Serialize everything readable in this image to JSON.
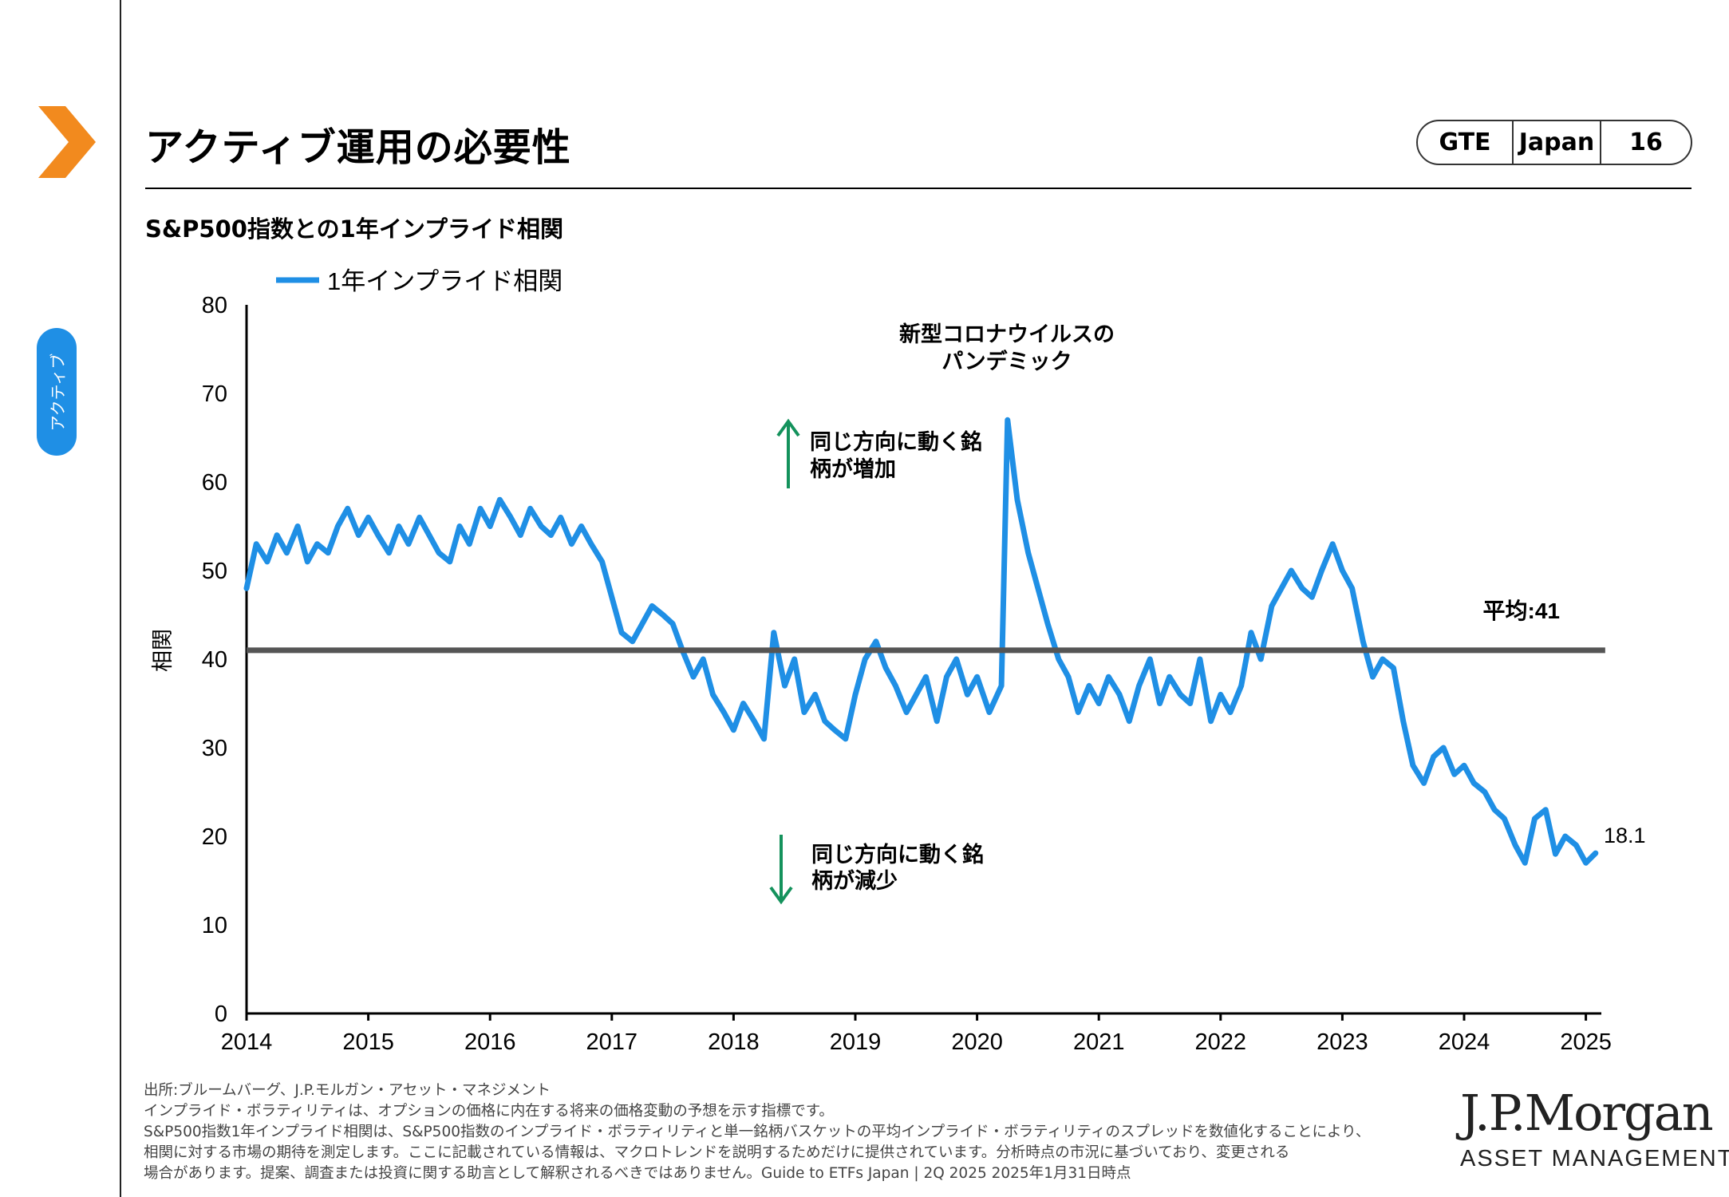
{
  "page": {
    "title": "アクティブ運用の必要性",
    "side_tab": "アクティブ",
    "badge": {
      "left": "GTE",
      "middle": "Japan",
      "right": "16"
    },
    "chart_subtitle": "S&P500指数との1年インプライド相関",
    "colors": {
      "accent_orange": "#f28a1e",
      "series_blue": "#1f8fe5",
      "average_line": "#555555",
      "arrow_green": "#14925c"
    },
    "icons": {
      "brand_mark": "chevron-right-icon"
    }
  },
  "chart_data": {
    "type": "line",
    "title": "",
    "xlabel": "",
    "ylabel": "相関",
    "ylim": [
      0,
      80
    ],
    "yticks": [
      "0",
      "10",
      "20",
      "30",
      "40",
      "50",
      "60",
      "70",
      "80"
    ],
    "xticks": [
      "2014",
      "2015",
      "2016",
      "2017",
      "2018",
      "2019",
      "2020",
      "2021",
      "2022",
      "2023",
      "2024",
      "2025"
    ],
    "xlim": [
      2014.0,
      2025.1
    ],
    "grid": false,
    "legend": {
      "position": "top-left",
      "label": "1年インプライド相関"
    },
    "series": [
      {
        "name": "1年インプライド相関",
        "x": [
          2014.0,
          2014.08,
          2014.17,
          2014.25,
          2014.33,
          2014.42,
          2014.5,
          2014.58,
          2014.67,
          2014.75,
          2014.83,
          2014.92,
          2015.0,
          2015.08,
          2015.17,
          2015.25,
          2015.33,
          2015.42,
          2015.5,
          2015.58,
          2015.67,
          2015.75,
          2015.83,
          2015.92,
          2016.0,
          2016.08,
          2016.17,
          2016.25,
          2016.33,
          2016.42,
          2016.5,
          2016.58,
          2016.67,
          2016.75,
          2016.83,
          2016.92,
          2017.0,
          2017.08,
          2017.17,
          2017.25,
          2017.33,
          2017.42,
          2017.5,
          2017.58,
          2017.67,
          2017.75,
          2017.83,
          2017.92,
          2018.0,
          2018.08,
          2018.17,
          2018.25,
          2018.33,
          2018.42,
          2018.5,
          2018.58,
          2018.67,
          2018.75,
          2018.83,
          2018.92,
          2019.0,
          2019.08,
          2019.17,
          2019.25,
          2019.33,
          2019.42,
          2019.5,
          2019.58,
          2019.67,
          2019.75,
          2019.83,
          2019.92,
          2020.0,
          2020.1,
          2020.2,
          2020.25,
          2020.33,
          2020.42,
          2020.5,
          2020.58,
          2020.67,
          2020.75,
          2020.83,
          2020.92,
          2021.0,
          2021.08,
          2021.17,
          2021.25,
          2021.33,
          2021.42,
          2021.5,
          2021.58,
          2021.67,
          2021.75,
          2021.83,
          2021.92,
          2022.0,
          2022.08,
          2022.17,
          2022.25,
          2022.33,
          2022.42,
          2022.5,
          2022.58,
          2022.67,
          2022.75,
          2022.83,
          2022.92,
          2023.0,
          2023.08,
          2023.17,
          2023.25,
          2023.33,
          2023.42,
          2023.5,
          2023.58,
          2023.67,
          2023.75,
          2023.83,
          2023.92,
          2024.0,
          2024.08,
          2024.17,
          2024.25,
          2024.33,
          2024.42,
          2024.5,
          2024.58,
          2024.67,
          2024.75,
          2024.83,
          2024.92,
          2025.0,
          2025.08
        ],
        "y": [
          48,
          53,
          51,
          54,
          52,
          55,
          51,
          53,
          52,
          55,
          57,
          54,
          56,
          54,
          52,
          55,
          53,
          56,
          54,
          52,
          51,
          55,
          53,
          57,
          55,
          58,
          56,
          54,
          57,
          55,
          54,
          56,
          53,
          55,
          53,
          51,
          47,
          43,
          42,
          44,
          46,
          45,
          44,
          41,
          38,
          40,
          36,
          34,
          32,
          35,
          33,
          31,
          43,
          37,
          40,
          34,
          36,
          33,
          32,
          31,
          36,
          40,
          42,
          39,
          37,
          34,
          36,
          38,
          33,
          38,
          40,
          36,
          38,
          34,
          37,
          67,
          58,
          52,
          48,
          44,
          40,
          38,
          34,
          37,
          35,
          38,
          36,
          33,
          37,
          40,
          35,
          38,
          36,
          35,
          40,
          33,
          36,
          34,
          37,
          43,
          40,
          46,
          48,
          50,
          48,
          47,
          50,
          53,
          50,
          48,
          42,
          38,
          40,
          39,
          33,
          28,
          26,
          29,
          30,
          27,
          28,
          26,
          25,
          23,
          22,
          19,
          17,
          22,
          23,
          18,
          20,
          19,
          17,
          18.1
        ]
      }
    ],
    "average": {
      "value": 41,
      "label": "平均:41"
    },
    "end_label": "18.1",
    "annotations": {
      "pandemic": [
        "新型コロナウイルスの",
        "パンデミック"
      ],
      "up": [
        "同じ方向に動く銘",
        "柄が増加"
      ],
      "down": [
        "同じ方向に動く銘",
        "柄が減少"
      ]
    }
  },
  "footer": {
    "lines": [
      "出所:ブルームバーグ、J.P.モルガン・アセット・マネジメント",
      "インプライド・ボラティリティは、オプションの価格に内在する将来の価格変動の予想を示す指標です。",
      "S&P500指数1年インプライド相関は、S&P500指数のインプライド・ボラティリティと単一銘柄バスケットの平均インプライド・ボラティリティのスプレッドを数値化することにより、",
      "相関に対する市場の期待を測定します。ここに記載されている情報は、マクロトレンドを説明するためだけに提供されています。分析時点の市況に基づいており、変更される",
      "場合があります。提案、調査または投資に関する助言として解釈されるべきではありません。Guide  to ETFs Japan | 2Q 2025 2025年1月31日時点"
    ],
    "logo_main": "J.P.Morgan",
    "logo_sub": "ASSET MANAGEMENT"
  }
}
